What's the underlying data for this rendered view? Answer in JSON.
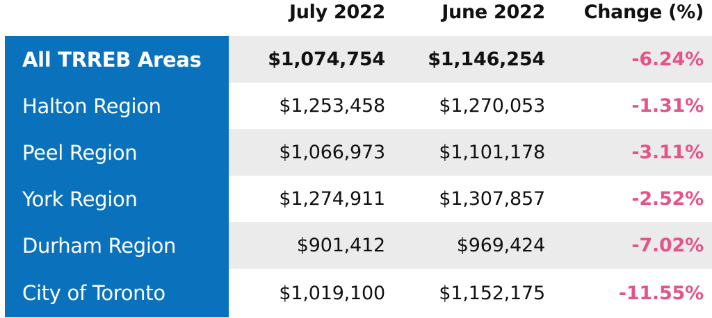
{
  "chart_data": {
    "type": "table",
    "columns": [
      "",
      "July 2022",
      "June 2022",
      "Change (%)"
    ],
    "rows": [
      {
        "region": "All TRREB Areas",
        "july_2022": "$1,074,754",
        "june_2022": "$1,146,254",
        "change_pct": "-6.24%"
      },
      {
        "region": "Halton Region",
        "july_2022": "$1,253,458",
        "june_2022": "$1,270,053",
        "change_pct": "-1.31%"
      },
      {
        "region": "Peel Region",
        "july_2022": "$1,066,973",
        "june_2022": "$1,101,178",
        "change_pct": "-3.11%"
      },
      {
        "region": "York Region",
        "july_2022": "$1,274,911",
        "june_2022": "$1,307,857",
        "change_pct": "-2.52%"
      },
      {
        "region": "Durham Region",
        "july_2022": "$901,412",
        "june_2022": "$969,424",
        "change_pct": "-7.02%"
      },
      {
        "region": "City of Toronto",
        "july_2022": "$1,019,100",
        "june_2022": "$1,152,175",
        "change_pct": "-11.55%"
      }
    ],
    "colors": {
      "region_column": "#0a72bd",
      "stripe": "#ebebeb",
      "change_text": "#e4548b"
    }
  }
}
